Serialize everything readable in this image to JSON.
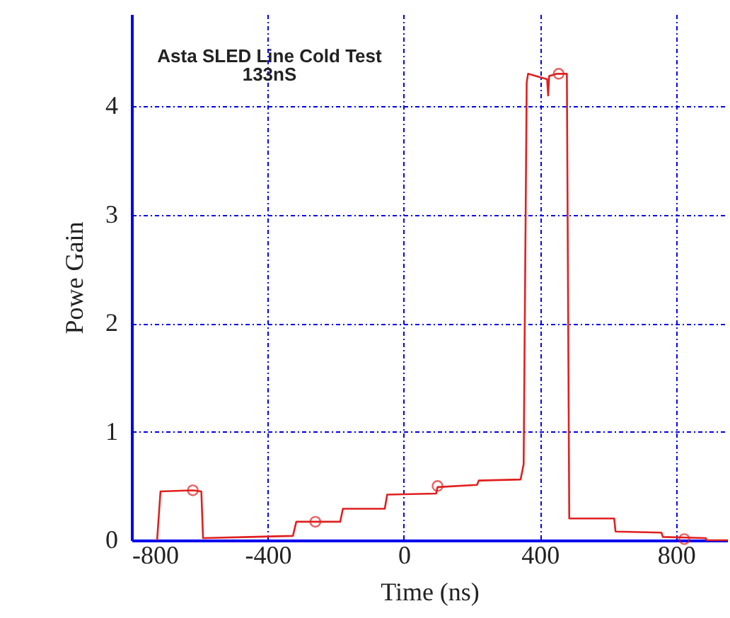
{
  "chart_data": {
    "type": "line",
    "title": "Asta SLED Line Cold Test",
    "subtitle": "133nS",
    "xlabel": "Time (ns)",
    "ylabel": "Powe Gain",
    "xlim": [
      -800,
      950
    ],
    "ylim": [
      0,
      4.85
    ],
    "xticks": [
      -800,
      -400,
      0,
      400,
      800
    ],
    "yticks": [
      0,
      1,
      2,
      3,
      4
    ],
    "grid": true,
    "series": [
      {
        "color": "#e02020",
        "marker": "none",
        "x": [
          -725,
          -715,
          -620,
          -595,
          -590,
          -451,
          -326,
          -316,
          -187,
          -179,
          -56,
          -49,
          95,
          99,
          215,
          220,
          343,
          352,
          361,
          365,
          421,
          424,
          427,
          450,
          479,
          486,
          618,
          622,
          757,
          761,
          887,
          890,
          950
        ],
        "values": [
          0,
          0.45,
          0.46,
          0.45,
          0.02,
          0.03,
          0.04,
          0.17,
          0.17,
          0.29,
          0.29,
          0.42,
          0.43,
          0.49,
          0.51,
          0.55,
          0.56,
          0.7,
          4.22,
          4.3,
          4.25,
          4.1,
          4.28,
          4.3,
          4.3,
          0.2,
          0.2,
          0.08,
          0.07,
          0.03,
          0.02,
          0,
          0
        ]
      },
      {
        "type": "scatter",
        "color": "#e02020",
        "marker": "circle",
        "x": [
          -620,
          -260,
          99,
          455,
          824
        ],
        "values": [
          0.46,
          0.17,
          0.5,
          4.3,
          0.01
        ]
      }
    ]
  }
}
